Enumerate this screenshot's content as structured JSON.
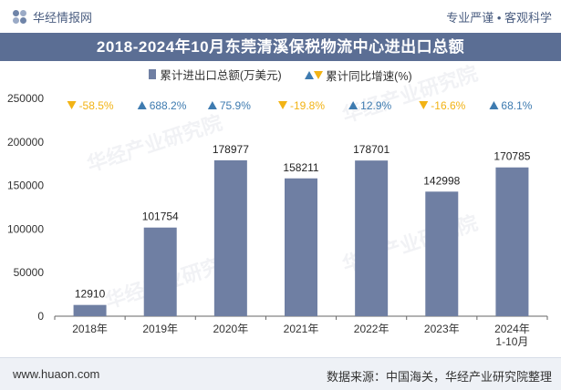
{
  "header": {
    "brand": "华经情报网",
    "tagline": "专业严谨 • 客观科学"
  },
  "title": "2018-2024年10月东莞清溪保税物流中心进出口总额",
  "legend": {
    "bar_label": "累计进出口总额(万美元)",
    "growth_label": "累计同比增速(%)"
  },
  "footer": {
    "url": "www.huaon.com",
    "source": "数据来源：中国海关，华经产业研究院整理"
  },
  "watermark": "华经产业研究院",
  "colors": {
    "bar": "#6f7fa3",
    "up": "#3e7bb0",
    "down": "#f2b315",
    "title_bg": "#5b6e94"
  },
  "chart_data": {
    "type": "bar",
    "categories": [
      "2018年",
      "2019年",
      "2020年",
      "2021年",
      "2022年",
      "2023年",
      "2024年\n1-10月"
    ],
    "series": [
      {
        "name": "累计进出口总额(万美元)",
        "values": [
          12910,
          101754,
          178977,
          158211,
          178701,
          142998,
          170785
        ]
      },
      {
        "name": "累计同比增速(%)",
        "values": [
          -58.5,
          688.2,
          75.9,
          -19.8,
          12.9,
          -16.6,
          68.1
        ],
        "labels": [
          "-58.5%",
          "688.2%",
          "75.9%",
          "-19.8%",
          "12.9%",
          "-16.6%",
          "68.1%"
        ]
      }
    ],
    "yticks": [
      "0",
      "50000",
      "100000",
      "150000",
      "200000",
      "250000"
    ],
    "ylim": [
      0,
      250000
    ],
    "grid": false,
    "legend_position": "top-center"
  }
}
